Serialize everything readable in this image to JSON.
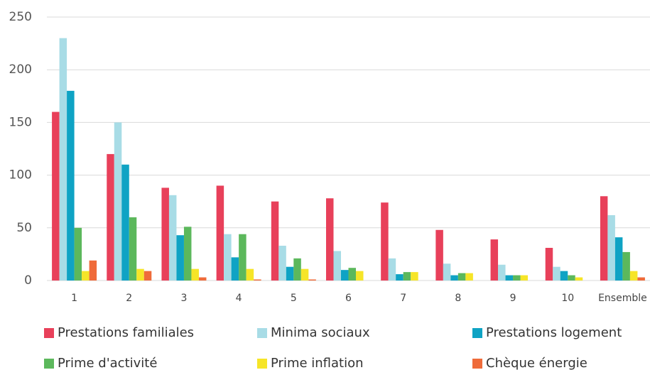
{
  "chart_data": {
    "type": "bar",
    "categories": [
      "1",
      "2",
      "3",
      "4",
      "5",
      "6",
      "7",
      "8",
      "9",
      "10",
      "Ensemble"
    ],
    "series": [
      {
        "name": "Prestations familiales",
        "color": "#e8405a",
        "values": [
          160,
          120,
          88,
          90,
          75,
          78,
          74,
          48,
          39,
          31,
          80
        ]
      },
      {
        "name": "Minima sociaux",
        "color": "#a8dce6",
        "values": [
          230,
          150,
          81,
          44,
          33,
          28,
          21,
          16,
          15,
          13,
          62
        ]
      },
      {
        "name": "Prestations logement",
        "color": "#0fa3c4",
        "values": [
          180,
          110,
          43,
          22,
          13,
          10,
          6,
          5,
          5,
          9,
          41
        ]
      },
      {
        "name": "Prime d'activité",
        "color": "#5cb85c",
        "values": [
          50,
          60,
          51,
          44,
          21,
          12,
          8,
          7,
          5,
          5,
          27
        ]
      },
      {
        "name": "Prime inflation",
        "color": "#f6e528",
        "values": [
          9,
          11,
          11,
          11,
          11,
          9,
          8,
          7,
          5,
          3,
          9
        ]
      },
      {
        "name": "Chèque énergie",
        "color": "#ef6b3a",
        "values": [
          19,
          9,
          3,
          1,
          1,
          0,
          0,
          0,
          0,
          0,
          3
        ]
      }
    ],
    "ylim": [
      0,
      250
    ],
    "yticks": [
      0,
      50,
      100,
      150,
      200,
      250
    ],
    "grid": true
  }
}
